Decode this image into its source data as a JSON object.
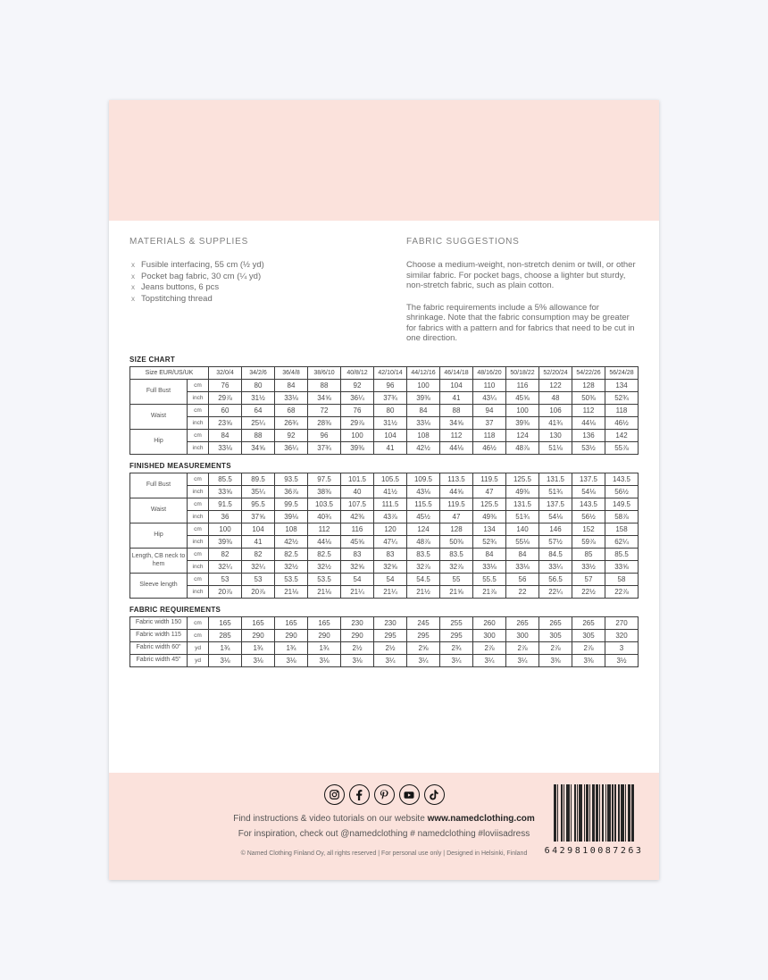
{
  "materials": {
    "heading": "MATERIALS & SUPPLIES",
    "bullet": "x",
    "items": [
      "Fusible interfacing, 55 cm (½ yd)",
      "Pocket bag fabric, 30 cm (¼ yd)",
      "Jeans buttons, 6 pcs",
      "Topstitching thread"
    ]
  },
  "fabric_suggestions": {
    "heading": "FABRIC SUGGESTIONS",
    "paragraphs": [
      "Choose a medium-weight, non-stretch denim or twill, or other similar fabric. For pocket bags, choose a lighter but sturdy, non-stretch fabric, such as plain cotton.",
      "The fabric requirements include a 5% allowance for shrinkage. Note that the fabric consumption may be greater for fabrics with a pattern and for fabrics that need to be cut in one direction."
    ]
  },
  "size_chart": {
    "title": "SIZE CHART",
    "header_label": "Size EUR/US/UK",
    "sizes": [
      "32/0/4",
      "34/2/6",
      "36/4/8",
      "38/6/10",
      "40/8/12",
      "42/10/14",
      "44/12/16",
      "46/14/18",
      "48/16/20",
      "50/18/22",
      "52/20/24",
      "54/22/26",
      "56/24/28"
    ],
    "rows": [
      {
        "label": "Full Bust",
        "units": [
          "cm",
          "inch"
        ],
        "values": [
          [
            "76",
            "80",
            "84",
            "88",
            "92",
            "96",
            "100",
            "104",
            "110",
            "116",
            "122",
            "128",
            "134"
          ],
          [
            "29⅞",
            "31½",
            "33⅛",
            "34⅝",
            "36¼",
            "37¾",
            "39⅜",
            "41",
            "43¼",
            "45⅝",
            "48",
            "50⅜",
            "52¾"
          ]
        ]
      },
      {
        "label": "Waist",
        "units": [
          "cm",
          "inch"
        ],
        "values": [
          [
            "60",
            "64",
            "68",
            "72",
            "76",
            "80",
            "84",
            "88",
            "94",
            "100",
            "106",
            "112",
            "118"
          ],
          [
            "23⅝",
            "25¼",
            "26¾",
            "28⅜",
            "29⅞",
            "31½",
            "33⅛",
            "34⅝",
            "37",
            "39⅜",
            "41¾",
            "44⅛",
            "46½"
          ]
        ]
      },
      {
        "label": "Hip",
        "units": [
          "cm",
          "inch"
        ],
        "values": [
          [
            "84",
            "88",
            "92",
            "96",
            "100",
            "104",
            "108",
            "112",
            "118",
            "124",
            "130",
            "136",
            "142"
          ],
          [
            "33⅛",
            "34⅝",
            "36¼",
            "37¾",
            "39⅜",
            "41",
            "42½",
            "44⅛",
            "46½",
            "48⅞",
            "51⅛",
            "53½",
            "55⅞"
          ]
        ]
      }
    ]
  },
  "finished_measurements": {
    "title": "FINISHED MEASUREMENTS",
    "rows": [
      {
        "label": "Full Bust",
        "units": [
          "cm",
          "inch"
        ],
        "values": [
          [
            "85.5",
            "89.5",
            "93.5",
            "97.5",
            "101.5",
            "105.5",
            "109.5",
            "113.5",
            "119.5",
            "125.5",
            "131.5",
            "137.5",
            "143.5"
          ],
          [
            "33⅝",
            "35¼",
            "36⅞",
            "38⅜",
            "40",
            "41½",
            "43⅛",
            "44⅝",
            "47",
            "49⅜",
            "51¾",
            "54⅛",
            "56½"
          ]
        ]
      },
      {
        "label": "Waist",
        "units": [
          "cm",
          "inch"
        ],
        "values": [
          [
            "91.5",
            "95.5",
            "99.5",
            "103.5",
            "107.5",
            "111.5",
            "115.5",
            "119.5",
            "125.5",
            "131.5",
            "137.5",
            "143.5",
            "149.5"
          ],
          [
            "36",
            "37⅝",
            "39⅛",
            "40¾",
            "42⅜",
            "43⅞",
            "45½",
            "47",
            "49⅜",
            "51¾",
            "54⅛",
            "56½",
            "58⅞"
          ]
        ]
      },
      {
        "label": "Hip",
        "units": [
          "cm",
          "inch"
        ],
        "values": [
          [
            "100",
            "104",
            "108",
            "112",
            "116",
            "120",
            "124",
            "128",
            "134",
            "140",
            "146",
            "152",
            "158"
          ],
          [
            "39⅜",
            "41",
            "42½",
            "44⅛",
            "45⅝",
            "47¼",
            "48⅞",
            "50⅜",
            "52¾",
            "55⅛",
            "57½",
            "59⅞",
            "62¼"
          ]
        ]
      },
      {
        "label": "Length, CB neck to hem",
        "units": [
          "cm",
          "inch"
        ],
        "values": [
          [
            "82",
            "82",
            "82.5",
            "82.5",
            "83",
            "83",
            "83.5",
            "83.5",
            "84",
            "84",
            "84.5",
            "85",
            "85.5"
          ],
          [
            "32¼",
            "32¼",
            "32½",
            "32½",
            "32⅝",
            "32⅝",
            "32⅞",
            "32⅞",
            "33⅛",
            "33⅛",
            "33¼",
            "33½",
            "33⅝"
          ]
        ]
      },
      {
        "label": "Sleeve length",
        "units": [
          "cm",
          "inch"
        ],
        "values": [
          [
            "53",
            "53",
            "53.5",
            "53.5",
            "54",
            "54",
            "54.5",
            "55",
            "55.5",
            "56",
            "56.5",
            "57",
            "58"
          ],
          [
            "20⅞",
            "20⅞",
            "21⅛",
            "21⅛",
            "21¼",
            "21¼",
            "21½",
            "21⅝",
            "21⅞",
            "22",
            "22¼",
            "22½",
            "22⅞"
          ]
        ]
      }
    ]
  },
  "fabric_requirements": {
    "title": "FABRIC REQUIREMENTS",
    "rows": [
      {
        "label": "Fabric width 150",
        "units": [
          "cm"
        ],
        "values": [
          [
            "165",
            "165",
            "165",
            "165",
            "230",
            "230",
            "245",
            "255",
            "260",
            "265",
            "265",
            "265",
            "270"
          ]
        ]
      },
      {
        "label": "Fabric width 115",
        "units": [
          "cm"
        ],
        "values": [
          [
            "285",
            "290",
            "290",
            "290",
            "290",
            "295",
            "295",
            "295",
            "300",
            "300",
            "305",
            "305",
            "320"
          ]
        ]
      },
      {
        "label": "Fabric width 60\"",
        "units": [
          "yd"
        ],
        "values": [
          [
            "1¾",
            "1¾",
            "1¾",
            "1¾",
            "2½",
            "2½",
            "2⅝",
            "2¾",
            "2⅞",
            "2⅞",
            "2⅞",
            "2⅞",
            "3"
          ]
        ]
      },
      {
        "label": "Fabric width 45\"",
        "units": [
          "yd"
        ],
        "values": [
          [
            "3⅛",
            "3⅛",
            "3⅛",
            "3⅛",
            "3⅛",
            "3¼",
            "3¼",
            "3¼",
            "3¼",
            "3¼",
            "3⅜",
            "3⅜",
            "3½"
          ]
        ]
      }
    ]
  },
  "footer": {
    "social_icons": [
      "instagram",
      "facebook",
      "pinterest",
      "youtube",
      "tiktok"
    ],
    "line1_text": "Find instructions & video tutorials on our website",
    "website": "www.namedclothing.com",
    "line2": "For inspiration, check out @namedclothing # namedclothing #loviisadress",
    "copyright": "© Named Clothing Finland Oy, all rights reserved | For personal use only | Designed in Helsinki, Finland",
    "barcode_digits": "6429810087263"
  },
  "colors": {
    "band_pink": "#fbe2dc",
    "page_white": "#ffffff",
    "background": "#f5f6fa",
    "table_border": "#3c3c3c"
  }
}
